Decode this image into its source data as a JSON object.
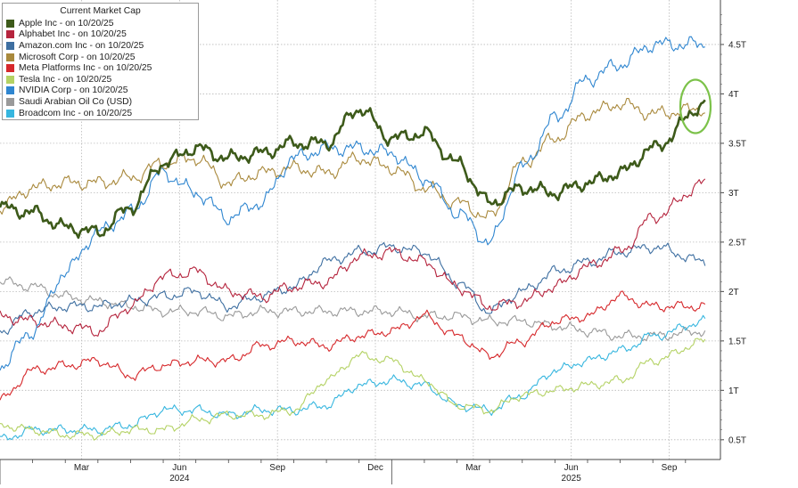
{
  "chart_data": {
    "type": "line",
    "legend_title": "Current Market Cap",
    "legend_position": "top-left",
    "grid": true,
    "y_axis_position": "right",
    "y_ticks": [
      "0.5T",
      "1T",
      "1.5T",
      "2T",
      "2.5T",
      "3T",
      "3.5T",
      "4T",
      "4.5T"
    ],
    "y_tick_values": [
      0.5,
      1.0,
      1.5,
      2.0,
      2.5,
      3.0,
      3.5,
      4.0,
      4.5
    ],
    "ylim": [
      0.3,
      4.95
    ],
    "x_ticks": [
      "Mar",
      "Jun",
      "Sep",
      "Dec",
      "Mar",
      "Jun",
      "Sep"
    ],
    "x_tick_positions": [
      "2024-03",
      "2024-06",
      "2024-09",
      "2024-12",
      "2025-03",
      "2025-06",
      "2025-09"
    ],
    "year_labels": [
      "2024",
      "2025"
    ],
    "xlim": [
      "2024-01",
      "2025-10-20"
    ],
    "x": [
      "2024-01",
      "2024-02",
      "2024-03",
      "2024-04",
      "2024-05",
      "2024-06",
      "2024-07",
      "2024-08",
      "2024-09",
      "2024-10",
      "2024-11",
      "2024-12",
      "2025-01",
      "2025-02",
      "2025-03",
      "2025-04",
      "2025-05",
      "2025-06",
      "2025-07",
      "2025-08",
      "2025-09",
      "2025-10-20"
    ],
    "series": [
      {
        "name": "Apple Inc - on 10/20/25",
        "color": "#3d5a1a",
        "width": 2.6,
        "values": [
          2.85,
          2.8,
          2.65,
          2.6,
          2.85,
          3.3,
          3.45,
          3.35,
          3.4,
          3.5,
          3.5,
          3.85,
          3.55,
          3.6,
          3.3,
          2.9,
          3.05,
          3.0,
          3.1,
          3.2,
          3.45,
          3.9
        ]
      },
      {
        "name": "Alphabet Inc - on 10/20/25",
        "color": "#b5243d",
        "width": 1.1,
        "values": [
          1.75,
          1.7,
          1.65,
          1.6,
          1.85,
          2.15,
          2.2,
          2.0,
          1.95,
          2.05,
          2.1,
          2.35,
          2.4,
          2.3,
          2.05,
          1.85,
          1.9,
          2.05,
          2.25,
          2.4,
          2.75,
          3.1
        ]
      },
      {
        "name": "Amazon.com Inc - on 10/20/25",
        "color": "#3e6fa1",
        "width": 1.1,
        "values": [
          1.6,
          1.8,
          1.85,
          1.85,
          1.9,
          1.95,
          2.0,
          1.85,
          1.95,
          2.05,
          2.3,
          2.4,
          2.45,
          2.4,
          2.1,
          1.8,
          2.0,
          2.2,
          2.3,
          2.4,
          2.45,
          2.3
        ]
      },
      {
        "name": "Microsoft Corp - on 10/20/25",
        "color": "#a9893c",
        "width": 1.1,
        "values": [
          2.85,
          3.05,
          3.1,
          3.1,
          3.15,
          3.3,
          3.35,
          3.1,
          3.2,
          3.25,
          3.2,
          3.35,
          3.25,
          3.05,
          2.9,
          2.75,
          3.3,
          3.55,
          3.8,
          3.9,
          3.8,
          3.85
        ]
      },
      {
        "name": "Meta Platforms Inc - on 10/20/25",
        "color": "#d6282b",
        "width": 1.1,
        "values": [
          0.9,
          1.2,
          1.25,
          1.3,
          1.15,
          1.25,
          1.3,
          1.3,
          1.45,
          1.5,
          1.45,
          1.55,
          1.6,
          1.75,
          1.55,
          1.35,
          1.5,
          1.7,
          1.75,
          1.95,
          1.85,
          1.85
        ]
      },
      {
        "name": "Tesla Inc - on 10/20/25",
        "color": "#b4d264",
        "width": 1.1,
        "values": [
          0.65,
          0.6,
          0.55,
          0.55,
          0.6,
          0.6,
          0.7,
          0.75,
          0.75,
          0.8,
          1.1,
          1.35,
          1.3,
          1.1,
          0.85,
          0.8,
          0.95,
          1.0,
          1.05,
          1.1,
          1.3,
          1.5
        ]
      },
      {
        "name": "NVIDIA Corp - on 10/20/25",
        "color": "#2f86d0",
        "width": 1.1,
        "values": [
          1.25,
          1.6,
          2.2,
          2.6,
          2.8,
          3.2,
          3.0,
          2.75,
          2.9,
          3.35,
          3.45,
          3.45,
          3.4,
          3.15,
          2.8,
          2.5,
          3.25,
          3.75,
          4.15,
          4.3,
          4.5,
          4.5
        ]
      },
      {
        "name": "Saudi Arabian Oil Co (USD)",
        "color": "#9a9a9a",
        "width": 1.1,
        "values": [
          2.1,
          2.05,
          1.95,
          1.9,
          1.85,
          1.8,
          1.8,
          1.75,
          1.8,
          1.8,
          1.8,
          1.8,
          1.8,
          1.75,
          1.75,
          1.7,
          1.7,
          1.65,
          1.6,
          1.55,
          1.55,
          1.6
        ]
      },
      {
        "name": "Broadcom Inc - on 10/20/25",
        "color": "#37b6df",
        "width": 1.1,
        "values": [
          0.5,
          0.6,
          0.6,
          0.6,
          0.65,
          0.8,
          0.8,
          0.75,
          0.8,
          0.8,
          0.85,
          1.05,
          1.1,
          1.05,
          0.85,
          0.8,
          0.95,
          1.2,
          1.3,
          1.4,
          1.55,
          1.7
        ]
      }
    ],
    "annotation": "green circle highlighting Apple's latest value",
    "annotation_color": "#7cc24a"
  }
}
